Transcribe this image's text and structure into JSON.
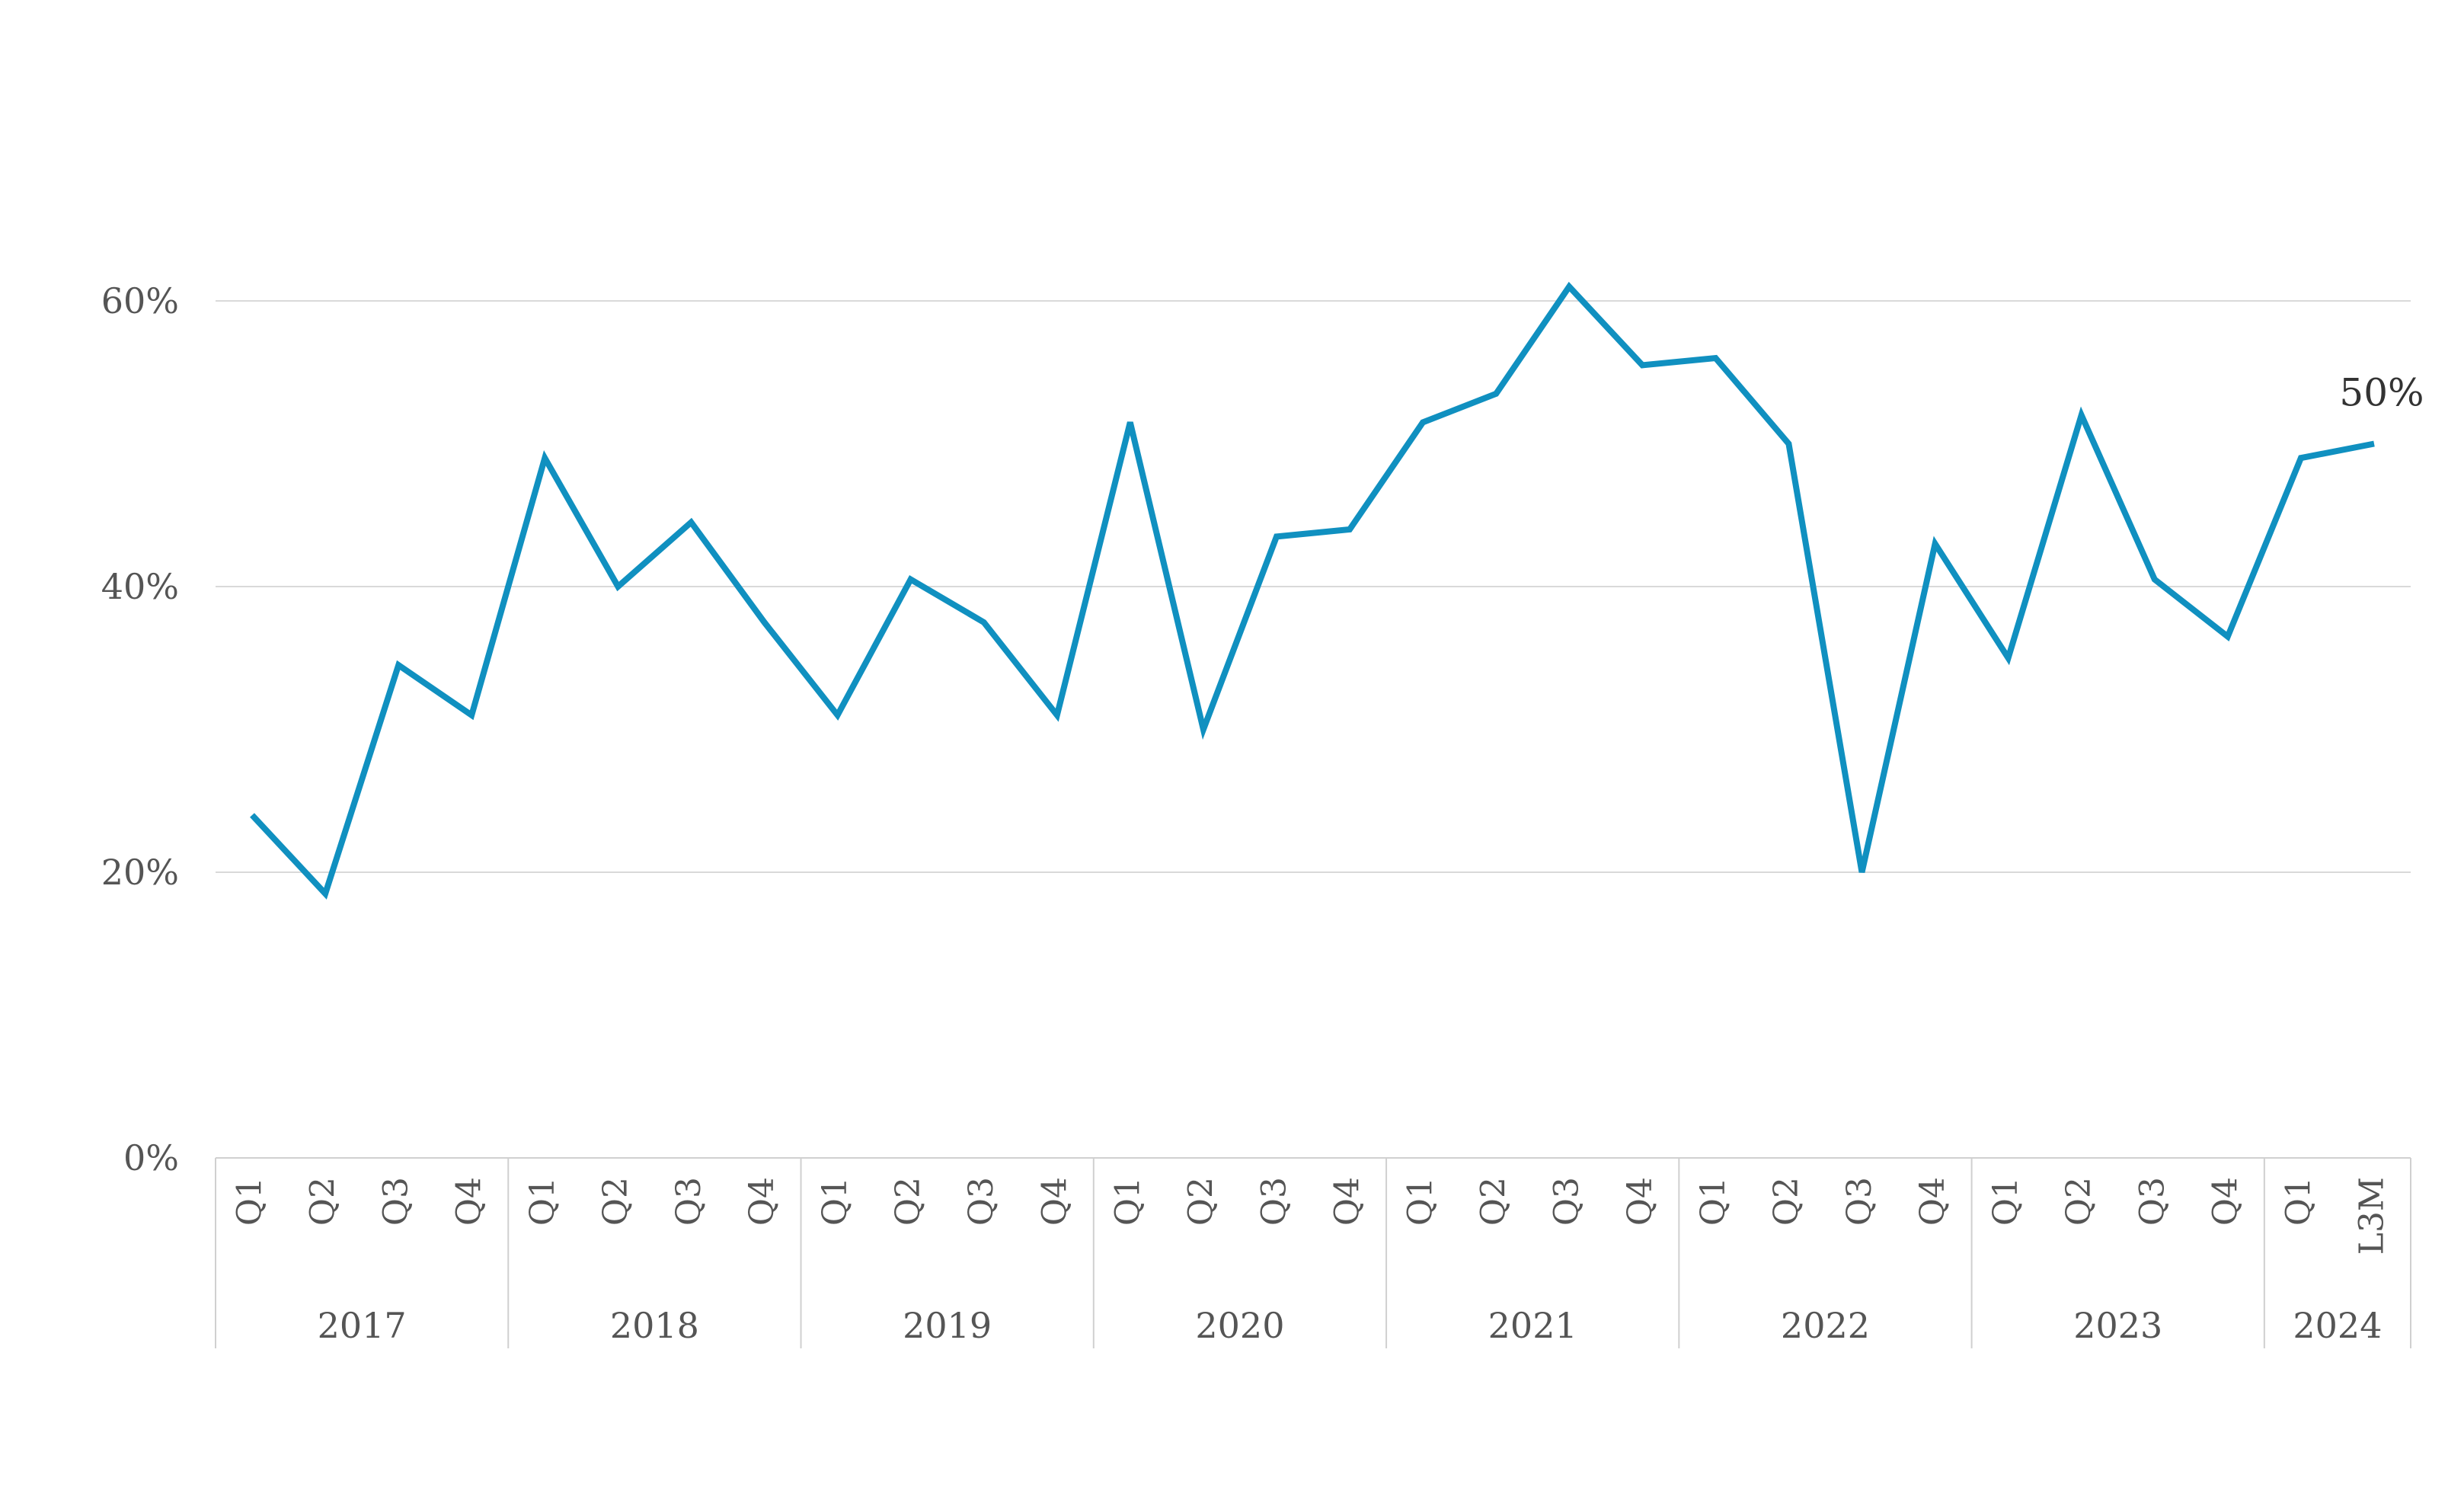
{
  "chart_data": {
    "type": "line",
    "title": "",
    "xlabel": "",
    "ylabel": "",
    "ylim": [
      0,
      0.7
    ],
    "yticks": [
      0,
      0.2,
      0.4,
      0.6
    ],
    "ytick_labels": [
      "0%",
      "20%",
      "40%",
      "60%"
    ],
    "grid": "horizontal",
    "legend": "none",
    "line_color": "#1090c0",
    "categories": [
      "Q1",
      "Q2",
      "Q3",
      "Q4",
      "Q1",
      "Q2",
      "Q3",
      "Q4",
      "Q1",
      "Q2",
      "Q3",
      "Q4",
      "Q1",
      "Q2",
      "Q3",
      "Q4",
      "Q1",
      "Q2",
      "Q3",
      "Q4",
      "Q1",
      "Q2",
      "Q3",
      "Q4",
      "Q1",
      "Q2",
      "Q3",
      "Q4",
      "Q1",
      "L3M"
    ],
    "year_groups": [
      {
        "label": "2017",
        "count": 4
      },
      {
        "label": "2018",
        "count": 4
      },
      {
        "label": "2019",
        "count": 4
      },
      {
        "label": "2020",
        "count": 4
      },
      {
        "label": "2021",
        "count": 4
      },
      {
        "label": "2022",
        "count": 4
      },
      {
        "label": "2023",
        "count": 4
      },
      {
        "label": "2024",
        "count": 2
      }
    ],
    "series": [
      {
        "values": [
          0.24,
          0.185,
          0.345,
          0.31,
          0.49,
          0.4,
          0.445,
          0.375,
          0.31,
          0.405,
          0.375,
          0.31,
          0.515,
          0.3,
          0.435,
          0.44,
          0.515,
          0.535,
          0.61,
          0.555,
          0.56,
          0.5,
          0.2,
          0.43,
          0.35,
          0.52,
          0.405,
          0.365,
          0.49,
          0.5
        ]
      }
    ],
    "annotations": [
      {
        "index": 29,
        "text": "50%"
      }
    ]
  }
}
